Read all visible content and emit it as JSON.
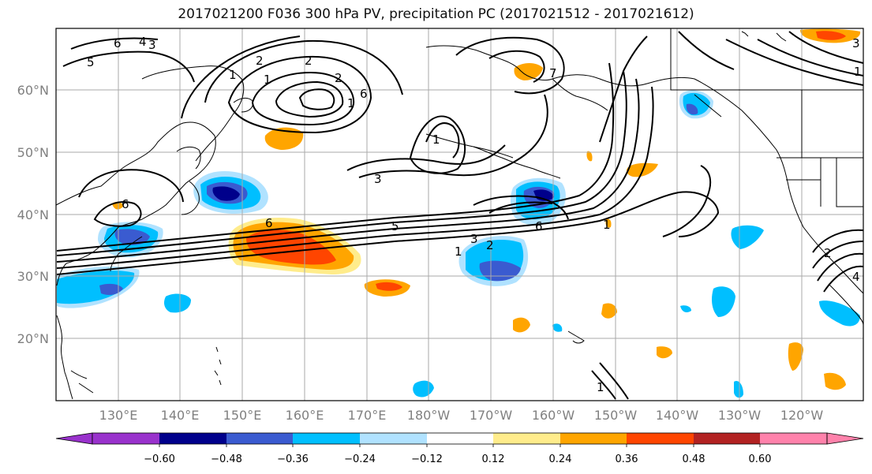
{
  "title": "2017021200 F036 300 hPa PV, precipitation PC (2017021512 - 2017021612)",
  "lat_labels": [
    "60°N",
    "50°N",
    "40°N",
    "30°N",
    "20°N"
  ],
  "lon_labels": [
    "130°E",
    "140°E",
    "150°E",
    "160°E",
    "170°E",
    "180°W",
    "170°W",
    "160°W",
    "150°W",
    "140°W",
    "130°W",
    "120°W"
  ],
  "contour_labels": [
    "5",
    "6",
    "4",
    "3",
    "1",
    "2",
    "1",
    "2",
    "2",
    "1",
    "6",
    "3",
    "1",
    "6",
    "5",
    "3",
    "2",
    "1",
    "6",
    "1",
    "1",
    "6",
    "7",
    "1",
    "3",
    "4",
    "2"
  ],
  "colorbar": {
    "ticks": [
      "−0.60",
      "−0.48",
      "−0.36",
      "−0.24",
      "−0.12",
      "0.12",
      "0.24",
      "0.36",
      "0.48",
      "0.60"
    ],
    "colors": [
      "#9932cc",
      "#00008b",
      "#3a5bd0",
      "#00bfff",
      "#b0e2ff",
      "#ffffff",
      "#ffec8b",
      "#ffa500",
      "#ff4500",
      "#b22222",
      "#ff82ab"
    ]
  },
  "colors": {
    "neg_strong": "#00008b",
    "neg_mid": "#3a5bd0",
    "neg_weak": "#00bfff",
    "neg_faint": "#b0e2ff",
    "pos_faint": "#ffec8b",
    "pos_weak": "#ffa500",
    "pos_mid": "#ff4500",
    "pos_strong": "#b22222",
    "gridlines": "#aaaaaa"
  }
}
